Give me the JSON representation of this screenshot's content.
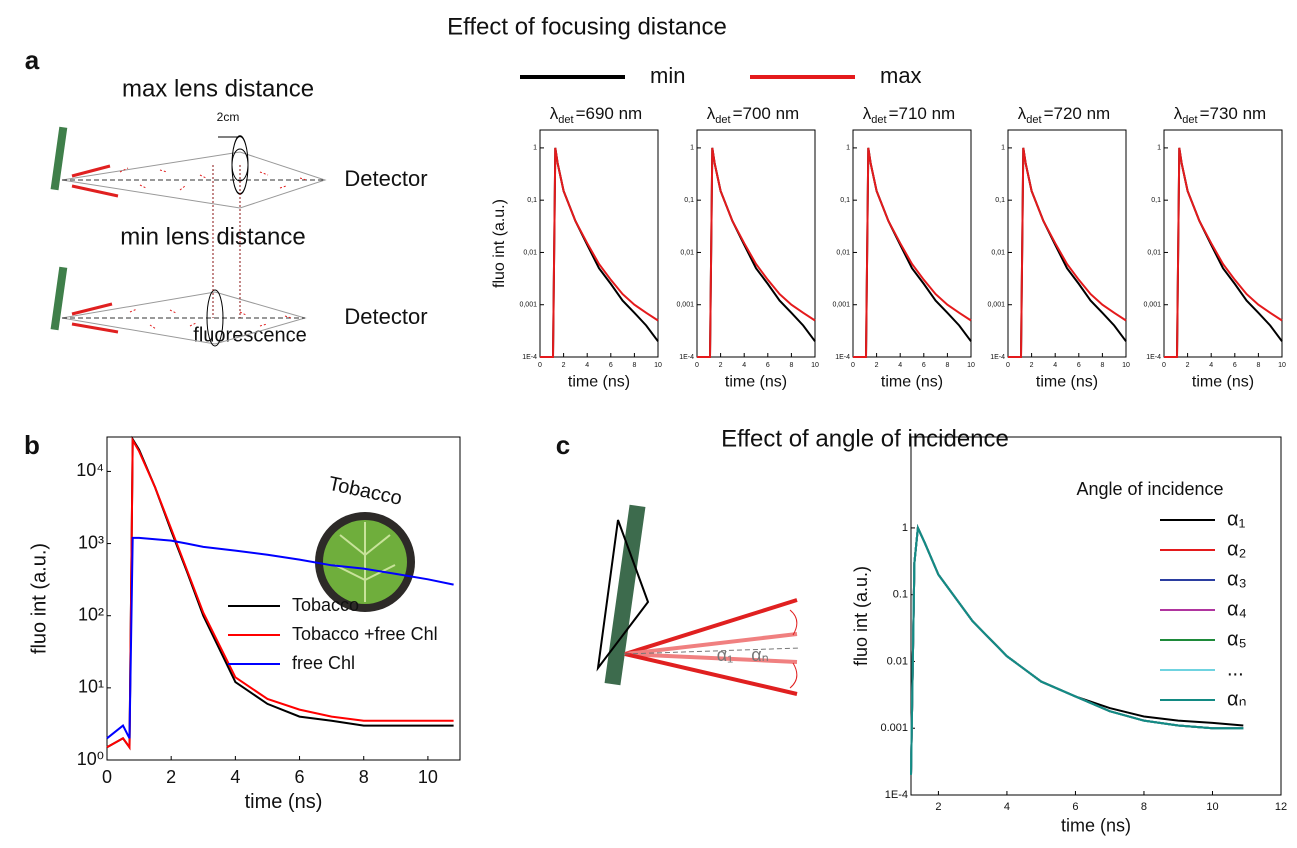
{
  "figure": {
    "title_a": "Effect of focusing distance",
    "title_c": "Effect of angle of incidence",
    "panel_a": "a",
    "panel_b": "b",
    "panel_c": "c",
    "max_lens": "max lens distance",
    "min_lens": "min lens distance",
    "detector_top": "Detector",
    "detector_bottom": "Detector",
    "fluorescence": "fluorescence",
    "scale": "2cm",
    "inset_label": "Tobacco",
    "angle_first": "α₁",
    "angle_last": "αₙ"
  },
  "chart_data": [
    {
      "type": "line",
      "title_symbol": "λ",
      "title_subscript": "det",
      "title": "=690 nm",
      "x_label": "time (ns)",
      "y_label": "fluo int (a.u.)",
      "log_y": true,
      "x": [
        0,
        1.1,
        1.3,
        1.5,
        2,
        3,
        4,
        5,
        6,
        7,
        8,
        9,
        10
      ],
      "series": [
        {
          "name": "min",
          "color": "#000000",
          "values": [
            0.0001,
            0.0001,
            1,
            0.5,
            0.15,
            0.04,
            0.014,
            0.005,
            0.0025,
            0.0012,
            0.0007,
            0.0004,
            0.0002
          ]
        },
        {
          "name": "max",
          "color": "#e41a1c",
          "values": [
            0.0001,
            0.0001,
            1,
            0.5,
            0.15,
            0.04,
            0.015,
            0.006,
            0.003,
            0.0016,
            0.001,
            0.0007,
            0.0005
          ]
        }
      ],
      "xlim": [
        0,
        10
      ],
      "ylim": [
        0.0001,
        2.2
      ],
      "xticks": [
        0,
        2,
        4,
        6,
        8,
        10
      ],
      "yticks": [
        {
          "value": 0.0001,
          "label": "1E-4"
        },
        {
          "value": 0.001,
          "label": "0,001"
        },
        {
          "value": 0.01,
          "label": "0,01"
        },
        {
          "value": 0.1,
          "label": "0,1"
        },
        1
      ]
    },
    {
      "type": "line",
      "title_symbol": "λ",
      "title_subscript": "det",
      "title": "=700 nm",
      "x_label": "time (ns)",
      "log_y": true,
      "x": [
        0,
        1.1,
        1.3,
        1.5,
        2,
        3,
        4,
        5,
        6,
        7,
        8,
        9,
        10
      ],
      "series": [
        {
          "color": "#000000",
          "values": [
            0.0001,
            0.0001,
            1,
            0.5,
            0.15,
            0.04,
            0.014,
            0.005,
            0.0025,
            0.0012,
            0.0007,
            0.0004,
            0.0002
          ]
        },
        {
          "color": "#e41a1c",
          "values": [
            0.0001,
            0.0001,
            1,
            0.5,
            0.15,
            0.04,
            0.015,
            0.006,
            0.003,
            0.0016,
            0.001,
            0.0007,
            0.0005
          ]
        }
      ],
      "xlim": [
        0,
        10
      ],
      "ylim": [
        0.0001,
        2.2
      ],
      "xticks": [
        0,
        2,
        4,
        6,
        8,
        10
      ],
      "yticks": [
        {
          "value": 0.0001,
          "label": "1E-4"
        },
        {
          "value": 0.001,
          "label": "0,001"
        },
        {
          "value": 0.01,
          "label": "0,01"
        },
        {
          "value": 0.1,
          "label": "0,1"
        },
        1
      ]
    },
    {
      "type": "line",
      "title_symbol": "λ",
      "title_subscript": "det",
      "title": "=710 nm",
      "x_label": "time (ns)",
      "log_y": true,
      "x": [
        0,
        1.1,
        1.3,
        1.5,
        2,
        3,
        4,
        5,
        6,
        7,
        8,
        9,
        10
      ],
      "series": [
        {
          "color": "#000000",
          "values": [
            0.0001,
            0.0001,
            1,
            0.5,
            0.15,
            0.04,
            0.014,
            0.005,
            0.0025,
            0.0012,
            0.0007,
            0.0004,
            0.0002
          ]
        },
        {
          "color": "#e41a1c",
          "values": [
            0.0001,
            0.0001,
            1,
            0.5,
            0.15,
            0.04,
            0.015,
            0.006,
            0.003,
            0.0016,
            0.001,
            0.0007,
            0.0005
          ]
        }
      ],
      "xlim": [
        0,
        10
      ],
      "ylim": [
        0.0001,
        2.2
      ],
      "xticks": [
        0,
        2,
        4,
        6,
        8,
        10
      ],
      "yticks": [
        {
          "value": 0.0001,
          "label": "1E-4"
        },
        {
          "value": 0.001,
          "label": "0,001"
        },
        {
          "value": 0.01,
          "label": "0,01"
        },
        {
          "value": 0.1,
          "label": "0,1"
        },
        1
      ]
    },
    {
      "type": "line",
      "title_symbol": "λ",
      "title_subscript": "det",
      "title": "=720 nm",
      "x_label": "time (ns)",
      "log_y": true,
      "x": [
        0,
        1.1,
        1.3,
        1.5,
        2,
        3,
        4,
        5,
        6,
        7,
        8,
        9,
        10
      ],
      "series": [
        {
          "color": "#000000",
          "values": [
            0.0001,
            0.0001,
            1,
            0.5,
            0.15,
            0.04,
            0.014,
            0.005,
            0.0025,
            0.0012,
            0.0007,
            0.0004,
            0.0002
          ]
        },
        {
          "color": "#e41a1c",
          "values": [
            0.0001,
            0.0001,
            1,
            0.5,
            0.15,
            0.04,
            0.015,
            0.006,
            0.003,
            0.0016,
            0.001,
            0.0007,
            0.0005
          ]
        }
      ],
      "xlim": [
        0,
        10
      ],
      "ylim": [
        0.0001,
        2.2
      ],
      "xticks": [
        0,
        2,
        4,
        6,
        8,
        10
      ],
      "yticks": [
        {
          "value": 0.0001,
          "label": "1E-4"
        },
        {
          "value": 0.001,
          "label": "0,001"
        },
        {
          "value": 0.01,
          "label": "0,01"
        },
        {
          "value": 0.1,
          "label": "0,1"
        },
        1
      ]
    },
    {
      "type": "line",
      "title_symbol": "λ",
      "title_subscript": "det",
      "title": "=730 nm",
      "x_label": "time (ns)",
      "log_y": true,
      "x": [
        0,
        1.1,
        1.3,
        1.5,
        2,
        3,
        4,
        5,
        6,
        7,
        8,
        9,
        10
      ],
      "series": [
        {
          "color": "#000000",
          "values": [
            0.0001,
            0.0001,
            1,
            0.5,
            0.15,
            0.04,
            0.014,
            0.005,
            0.0025,
            0.0012,
            0.0007,
            0.0004,
            0.0002
          ]
        },
        {
          "color": "#e41a1c",
          "values": [
            0.0001,
            0.0001,
            1,
            0.5,
            0.15,
            0.04,
            0.015,
            0.006,
            0.003,
            0.0016,
            0.001,
            0.0007,
            0.0005
          ]
        }
      ],
      "xlim": [
        0,
        10
      ],
      "ylim": [
        0.0001,
        2.2
      ],
      "xticks": [
        0,
        2,
        4,
        6,
        8,
        10
      ],
      "yticks": [
        {
          "value": 0.0001,
          "label": "1E-4"
        },
        {
          "value": 0.001,
          "label": "0,001"
        },
        {
          "value": 0.01,
          "label": "0,01"
        },
        {
          "value": 0.1,
          "label": "0,1"
        },
        1
      ]
    },
    {
      "type": "line",
      "x_label": "time (ns)",
      "y_label": "fluo int (a.u.)",
      "log_y": true,
      "x": [
        0,
        0.5,
        0.7,
        0.8,
        1,
        1.5,
        2,
        2.5,
        3,
        4,
        5,
        6,
        7,
        8,
        9,
        10,
        10.8
      ],
      "series": [
        {
          "name": "Tobacco",
          "color": "#000000",
          "values": [
            1.5,
            2,
            1.5,
            28000,
            20000,
            6000,
            1500,
            400,
            100,
            12,
            6,
            4,
            3.5,
            3,
            3,
            3,
            3
          ]
        },
        {
          "name": "Tobacco +free Chl",
          "color": "#ff0000",
          "values": [
            1.5,
            2,
            1.5,
            27000,
            19000,
            6000,
            1600,
            420,
            110,
            14,
            7,
            5,
            4,
            3.5,
            3.5,
            3.5,
            3.5
          ]
        },
        {
          "name": "free Chl",
          "color": "#0000ff",
          "values": [
            2,
            3,
            2,
            1200,
            1200,
            1150,
            1100,
            1000,
            900,
            800,
            700,
            600,
            500,
            450,
            380,
            320,
            270
          ]
        }
      ],
      "xlim": [
        0,
        11
      ],
      "ylim": [
        1,
        30000
      ],
      "xticks": [
        0,
        2,
        4,
        6,
        8,
        10
      ],
      "yticks": [
        {
          "value": 1,
          "label": "10⁰"
        },
        {
          "value": 10,
          "label": "10¹"
        },
        {
          "value": 100,
          "label": "10²"
        },
        {
          "value": 1000,
          "label": "10³"
        },
        {
          "value": 10000,
          "label": "10⁴"
        }
      ]
    },
    {
      "type": "line",
      "x_label": "time (ns)",
      "y_label": "fluo int (a.u.)",
      "legend_title": "Angle of incidence",
      "log_y": true,
      "x": [
        1.2,
        1.3,
        1.4,
        1.6,
        2,
        3,
        4,
        5,
        6,
        7,
        8,
        9,
        10,
        10.9
      ],
      "series": [
        {
          "name": "α₁",
          "color": "#000000",
          "values": [
            0.0002,
            0.3,
            1,
            0.6,
            0.2,
            0.04,
            0.012,
            0.005,
            0.003,
            0.002,
            0.0015,
            0.0013,
            0.0012,
            0.0011
          ]
        },
        {
          "name": "α₂",
          "color": "#e41a1c",
          "values": [
            0.0002,
            0.3,
            1,
            0.6,
            0.2,
            0.04,
            0.012,
            0.005,
            0.003,
            0.0018,
            0.0013,
            0.0011,
            0.001,
            0.001
          ]
        },
        {
          "name": "α₃",
          "color": "#2b3ea0",
          "values": [
            0.0002,
            0.3,
            1,
            0.6,
            0.2,
            0.04,
            0.012,
            0.005,
            0.003,
            0.0018,
            0.0013,
            0.0011,
            0.001,
            0.001
          ]
        },
        {
          "name": "α₄",
          "color": "#b0359f",
          "values": [
            0.0002,
            0.3,
            1,
            0.6,
            0.2,
            0.04,
            0.012,
            0.005,
            0.003,
            0.0018,
            0.0013,
            0.0011,
            0.001,
            0.001
          ]
        },
        {
          "name": "α₅",
          "color": "#1e8a3a",
          "values": [
            0.0002,
            0.3,
            1,
            0.6,
            0.2,
            0.04,
            0.012,
            0.005,
            0.003,
            0.0018,
            0.0013,
            0.0011,
            0.001,
            0.001
          ]
        },
        {
          "name": "...",
          "color": "#6fd3e0",
          "values": [
            0.0002,
            0.3,
            1,
            0.6,
            0.2,
            0.04,
            0.012,
            0.005,
            0.003,
            0.0018,
            0.0013,
            0.0011,
            0.001,
            0.001
          ]
        },
        {
          "name": "αₙ",
          "color": "#138a83",
          "values": [
            0.0002,
            0.3,
            1,
            0.6,
            0.2,
            0.04,
            0.012,
            0.005,
            0.003,
            0.0018,
            0.0013,
            0.0011,
            0.001,
            0.001
          ]
        }
      ],
      "xlim": [
        1.2,
        12
      ],
      "ylim": [
        0.0001,
        23
      ],
      "xticks": [
        2,
        4,
        6,
        8,
        10,
        12
      ],
      "yticks": [
        {
          "value": 0.0001,
          "label": "1E-4"
        },
        0.001,
        0.01,
        0.1,
        1
      ]
    }
  ]
}
